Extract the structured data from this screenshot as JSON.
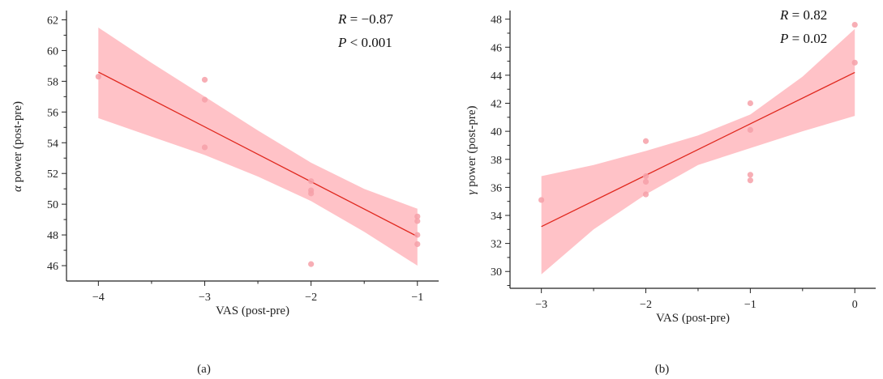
{
  "colors": {
    "band": "#ffb7bd",
    "line": "#e0281e",
    "point": "#f6a0a8",
    "axis": "#222222"
  },
  "chart_data": [
    {
      "type": "scatter",
      "panel_label": "(a)",
      "xlabel": "VAS (post-pre)",
      "ylabel_symbol": "α",
      "ylabel_rest": " power (post-pre)",
      "xlim": [
        -4.3,
        -0.8
      ],
      "ylim": [
        45.0,
        62.5
      ],
      "xticks": [
        -4,
        -3,
        -2,
        -1
      ],
      "xtick_labels": [
        "−4",
        "−3",
        "−2",
        "−1"
      ],
      "xminor": [
        -3.5,
        -2.5,
        -1.5
      ],
      "yticks": [
        46,
        48,
        50,
        52,
        54,
        56,
        58,
        60,
        62
      ],
      "yminor": [
        47,
        49,
        51,
        53,
        55,
        57,
        59,
        61
      ],
      "stat_r": {
        "sym": "R",
        "rest": " = −0.87"
      },
      "stat_p": {
        "sym": "P",
        "rest": " < 0.001"
      },
      "points": [
        {
          "x": -4,
          "y": 58.3
        },
        {
          "x": -3,
          "y": 58.1
        },
        {
          "x": -3,
          "y": 56.8
        },
        {
          "x": -3,
          "y": 53.7
        },
        {
          "x": -2,
          "y": 51.5
        },
        {
          "x": -2,
          "y": 50.9
        },
        {
          "x": -2,
          "y": 50.7
        },
        {
          "x": -2,
          "y": 46.1
        },
        {
          "x": -1,
          "y": 49.2
        },
        {
          "x": -1,
          "y": 48.9
        },
        {
          "x": -1,
          "y": 48.0
        },
        {
          "x": -1,
          "y": 47.4
        }
      ],
      "fit": {
        "x": [
          -4,
          -1
        ],
        "y": [
          58.6,
          47.9
        ]
      },
      "band": {
        "x": [
          -4,
          -3.5,
          -3,
          -2.5,
          -2,
          -1.5,
          -1
        ],
        "upper": [
          61.5,
          59.2,
          57.0,
          54.8,
          52.7,
          51.0,
          49.7
        ],
        "lower": [
          55.6,
          54.4,
          53.2,
          51.8,
          50.2,
          48.2,
          46.0
        ]
      }
    },
    {
      "type": "scatter",
      "panel_label": "(b)",
      "xlabel": "VAS (post-pre)",
      "ylabel_symbol": "γ",
      "ylabel_rest": " power (post-pre)",
      "xlim": [
        -3.3,
        0.2
      ],
      "ylim": [
        28.8,
        48.5
      ],
      "xticks": [
        -3,
        -2,
        -1,
        0
      ],
      "xtick_labels": [
        "−3",
        "−2",
        "−1",
        "0"
      ],
      "xminor": [
        -2.5,
        -1.5,
        -0.5
      ],
      "yticks": [
        30,
        32,
        34,
        36,
        38,
        40,
        42,
        44,
        46,
        48
      ],
      "yminor": [
        29,
        31,
        33,
        35,
        37,
        39,
        41,
        43,
        45,
        47
      ],
      "stat_r": {
        "sym": "R",
        "rest": " = 0.82"
      },
      "stat_p": {
        "sym": "P",
        "rest": " = 0.02"
      },
      "points": [
        {
          "x": -3,
          "y": 35.1
        },
        {
          "x": -2,
          "y": 39.3
        },
        {
          "x": -2,
          "y": 36.8
        },
        {
          "x": -2,
          "y": 36.4
        },
        {
          "x": -2,
          "y": 35.5
        },
        {
          "x": -1,
          "y": 42.0
        },
        {
          "x": -1,
          "y": 40.1
        },
        {
          "x": -1,
          "y": 36.9
        },
        {
          "x": -1,
          "y": 36.5
        },
        {
          "x": 0,
          "y": 47.6
        },
        {
          "x": 0,
          "y": 44.9
        }
      ],
      "fit": {
        "x": [
          -3,
          0
        ],
        "y": [
          33.2,
          44.2
        ]
      },
      "band": {
        "x": [
          -3,
          -2.5,
          -2,
          -1.5,
          -1,
          -0.5,
          0
        ],
        "upper": [
          36.8,
          37.6,
          38.6,
          39.7,
          41.2,
          43.9,
          47.3
        ],
        "lower": [
          29.8,
          33.0,
          35.5,
          37.6,
          38.8,
          40.0,
          41.1
        ]
      }
    }
  ]
}
